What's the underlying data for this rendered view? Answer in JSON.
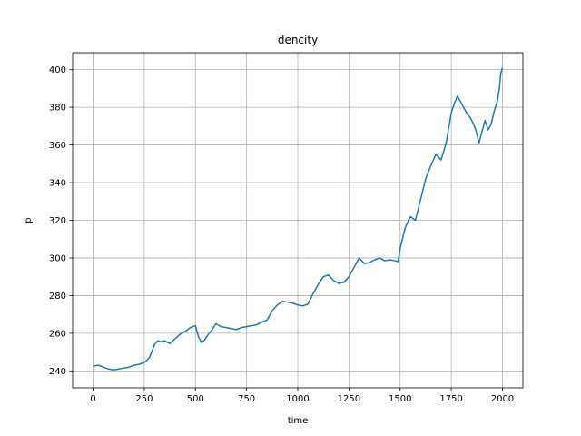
{
  "chart_data": {
    "type": "line",
    "title": "dencity",
    "xlabel": "time",
    "ylabel": "p",
    "xlim": [
      -100,
      2100
    ],
    "ylim": [
      231,
      409
    ],
    "xticks": [
      0,
      250,
      500,
      750,
      1000,
      1250,
      1500,
      1750,
      2000
    ],
    "xtick_labels": [
      "0",
      "250",
      "500",
      "750",
      "1000",
      "1250",
      "1500",
      "1750",
      "2000"
    ],
    "yticks": [
      240,
      260,
      280,
      300,
      320,
      340,
      360,
      380,
      400
    ],
    "ytick_labels": [
      "240",
      "260",
      "280",
      "300",
      "320",
      "340",
      "360",
      "380",
      "400"
    ],
    "grid": true,
    "series": [
      {
        "color": "#1f77b4",
        "x": [
          0,
          25,
          50,
          75,
          100,
          125,
          150,
          175,
          200,
          225,
          250,
          275,
          300,
          315,
          330,
          350,
          375,
          400,
          425,
          450,
          475,
          500,
          515,
          530,
          545,
          560,
          575,
          600,
          625,
          650,
          675,
          700,
          725,
          750,
          775,
          800,
          825,
          850,
          875,
          900,
          925,
          950,
          975,
          1000,
          1025,
          1050,
          1075,
          1100,
          1125,
          1150,
          1175,
          1200,
          1225,
          1250,
          1275,
          1300,
          1325,
          1350,
          1375,
          1400,
          1425,
          1450,
          1475,
          1490,
          1500,
          1525,
          1550,
          1575,
          1600,
          1625,
          1650,
          1675,
          1700,
          1725,
          1750,
          1765,
          1780,
          1795,
          1810,
          1825,
          1840,
          1855,
          1870,
          1885,
          1900,
          1915,
          1930,
          1945,
          1960,
          1975,
          1985,
          1992,
          2000
        ],
        "y": [
          242.5,
          243,
          242,
          241,
          240.5,
          241,
          241.5,
          242,
          243,
          243.5,
          244.5,
          247,
          254,
          256,
          255.5,
          256,
          254.5,
          257,
          259.5,
          261,
          263,
          264,
          258,
          255,
          256.5,
          259,
          261,
          265,
          263.5,
          263,
          262.5,
          262,
          263,
          263.5,
          264,
          264.5,
          266,
          267,
          272,
          275,
          277,
          276.5,
          276,
          275,
          274.5,
          275.5,
          281,
          286,
          290,
          291,
          288,
          286.5,
          287,
          290,
          295,
          300,
          297,
          297.5,
          299,
          300,
          298.5,
          299,
          298.5,
          298,
          305,
          316,
          322,
          320,
          331,
          342,
          349,
          355,
          352,
          361,
          377,
          382,
          386,
          383,
          380,
          377,
          375,
          372,
          368,
          361,
          367,
          373,
          368,
          371,
          378,
          383,
          390,
          398,
          401
        ]
      }
    ]
  }
}
